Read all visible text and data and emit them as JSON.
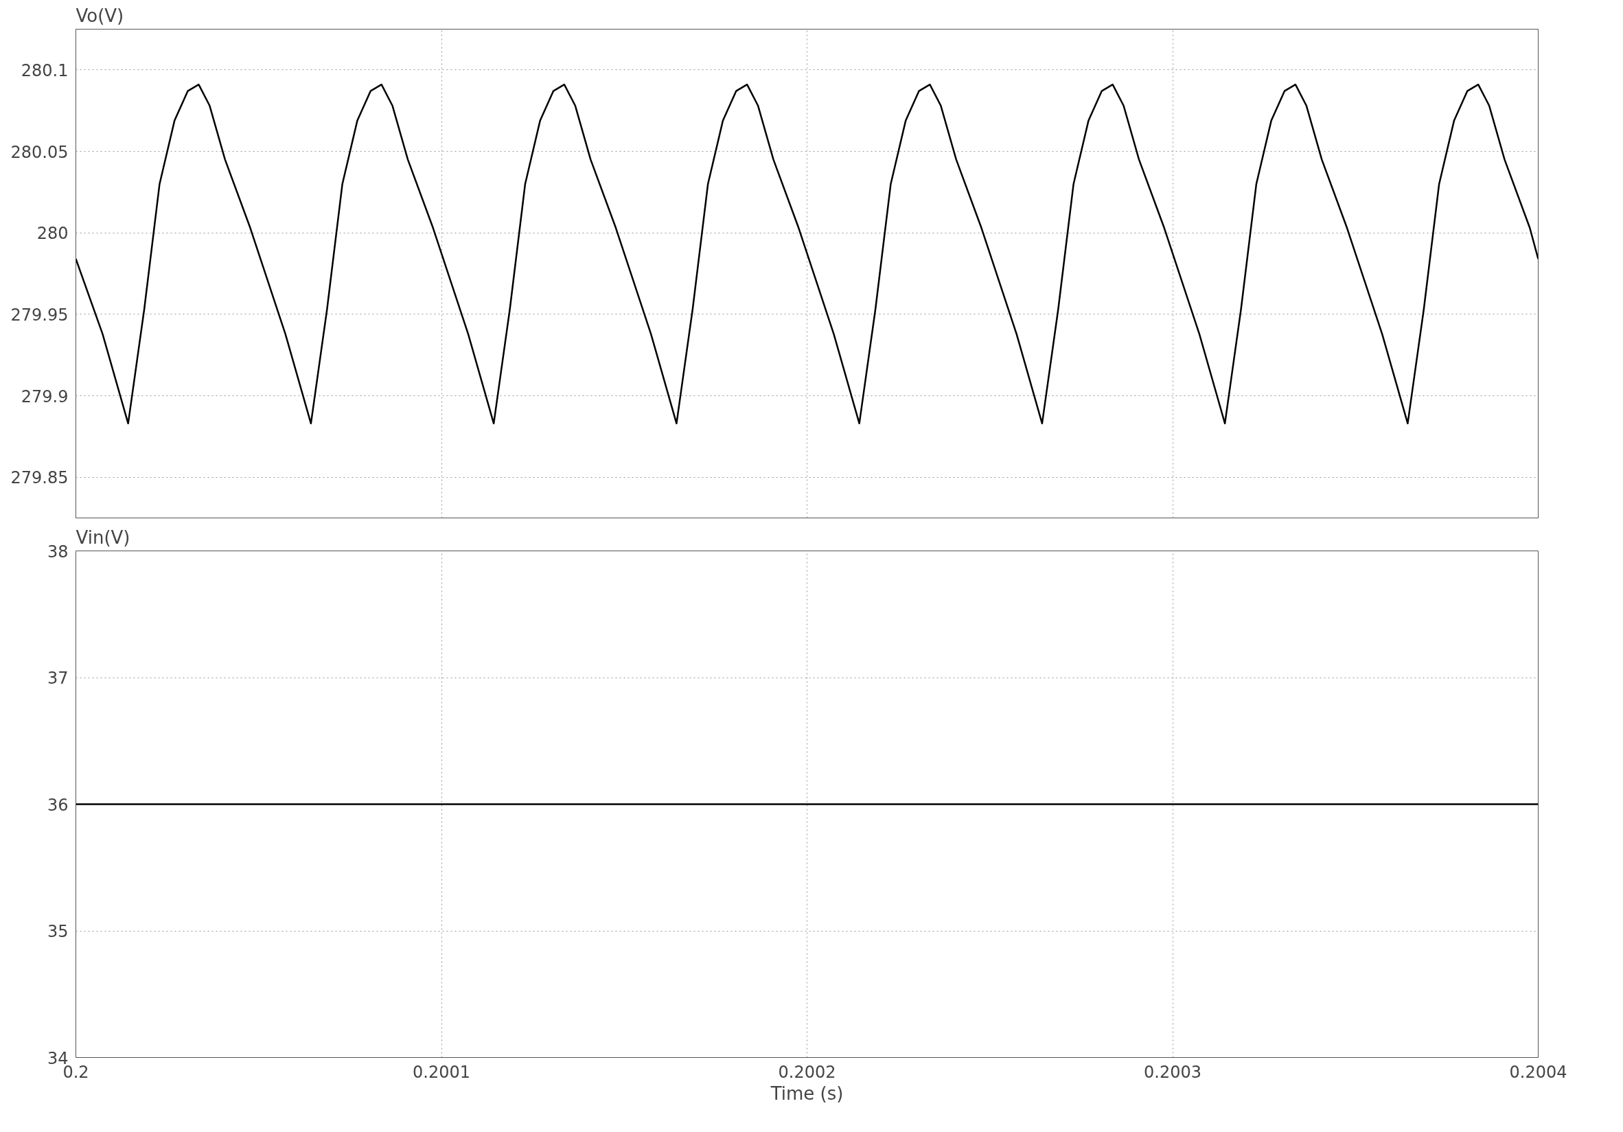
{
  "chart_data": [
    {
      "type": "line",
      "ylabel": "Vo(V)",
      "xlim": [
        0.2,
        0.2004
      ],
      "xticks": [
        0.2,
        0.2001,
        0.2002,
        0.2003,
        0.2004
      ],
      "ylim": [
        279.825,
        280.125
      ],
      "yticks": [
        279.85,
        279.9,
        279.95,
        280,
        280.05,
        280.1
      ],
      "grid": true,
      "tick_labels": "y",
      "series": [
        {
          "color": "#000000",
          "x": [
            0.2,
            0.2000073,
            0.2000143,
            0.2000187,
            0.2000229,
            0.200027,
            0.2000306,
            0.2000336,
            0.2000366,
            0.2000408,
            0.2000477,
            0.2000573,
            0.2000643,
            0.2000687,
            0.2000729,
            0.200077,
            0.2000806,
            0.2000836,
            0.2000866,
            0.2000908,
            0.2000977,
            0.2001073,
            0.2001143,
            0.2001187,
            0.2001229,
            0.200127,
            0.2001306,
            0.2001336,
            0.2001366,
            0.2001408,
            0.2001477,
            0.2001573,
            0.2001643,
            0.2001687,
            0.2001729,
            0.200177,
            0.2001806,
            0.2001836,
            0.2001866,
            0.2001908,
            0.2001977,
            0.2002073,
            0.2002143,
            0.2002187,
            0.2002229,
            0.200227,
            0.2002306,
            0.2002336,
            0.2002366,
            0.2002408,
            0.2002477,
            0.2002573,
            0.2002643,
            0.2002687,
            0.2002729,
            0.200277,
            0.2002806,
            0.2002836,
            0.2002866,
            0.2002908,
            0.2002977,
            0.2003073,
            0.2003143,
            0.2003187,
            0.2003229,
            0.200327,
            0.2003306,
            0.2003336,
            0.2003366,
            0.2003408,
            0.2003477,
            0.2003573,
            0.2003643,
            0.2003687,
            0.2003729,
            0.200377,
            0.2003806,
            0.2003836,
            0.2003866,
            0.2003908,
            0.2003977,
            0.2004
          ],
          "values": [
            279.984,
            279.938,
            279.883,
            279.953,
            280.03,
            280.069,
            280.087,
            280.091,
            280.078,
            280.045,
            280.003,
            279.938,
            279.883,
            279.953,
            280.03,
            280.069,
            280.087,
            280.091,
            280.078,
            280.045,
            280.003,
            279.938,
            279.883,
            279.953,
            280.03,
            280.069,
            280.087,
            280.091,
            280.078,
            280.045,
            280.003,
            279.938,
            279.883,
            279.953,
            280.03,
            280.069,
            280.087,
            280.091,
            280.078,
            280.045,
            280.003,
            279.938,
            279.883,
            279.953,
            280.03,
            280.069,
            280.087,
            280.091,
            280.078,
            280.045,
            280.003,
            279.938,
            279.883,
            279.953,
            280.03,
            280.069,
            280.087,
            280.091,
            280.078,
            280.045,
            280.003,
            279.938,
            279.883,
            279.953,
            280.03,
            280.069,
            280.087,
            280.091,
            280.078,
            280.045,
            280.003,
            279.938,
            279.883,
            279.953,
            280.03,
            280.069,
            280.087,
            280.091,
            280.078,
            280.045,
            280.003,
            279.984
          ]
        }
      ]
    },
    {
      "type": "line",
      "ylabel": "Vin(V)",
      "xlabel": "Time (s)",
      "xlim": [
        0.2,
        0.2004
      ],
      "xticks": [
        0.2,
        0.2001,
        0.2002,
        0.2003,
        0.2004
      ],
      "ylim": [
        34,
        38
      ],
      "yticks": [
        34,
        35,
        36,
        37,
        38
      ],
      "grid": true,
      "series": [
        {
          "color": "#000000",
          "x": [
            0.2,
            0.2004
          ],
          "values": [
            36,
            36
          ]
        }
      ]
    }
  ]
}
